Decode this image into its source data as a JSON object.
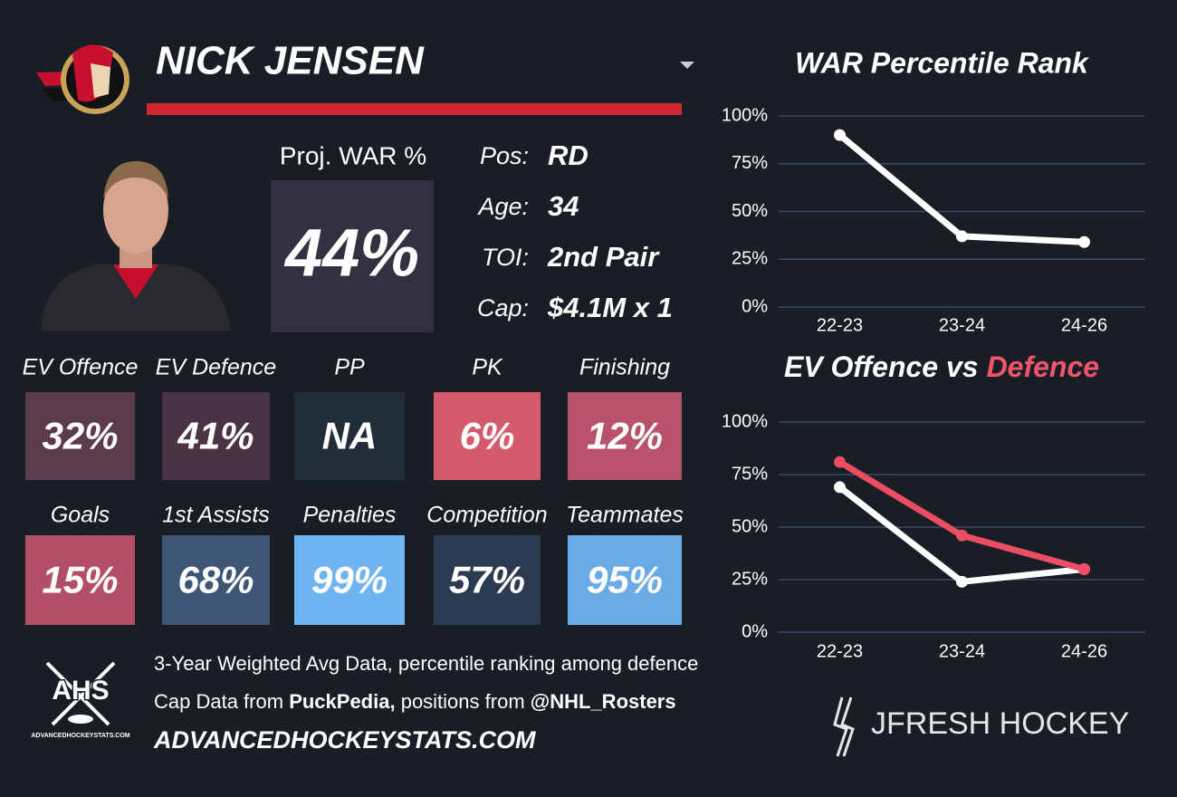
{
  "player": {
    "name": "NICK JENSEN"
  },
  "projected_war": {
    "label": "Proj. WAR %",
    "value": "44%"
  },
  "info": [
    {
      "label": "Pos:",
      "value": "RD"
    },
    {
      "label": "Age:",
      "value": "34"
    },
    {
      "label": "TOI:",
      "value": "2nd Pair"
    },
    {
      "label": "Cap:",
      "value": "$4.1M x 1"
    }
  ],
  "tiles": [
    {
      "label": "EV Offence",
      "value": "32%",
      "color": "#5b3b4c"
    },
    {
      "label": "EV Defence",
      "value": "41%",
      "color": "#4a3343"
    },
    {
      "label": "PP",
      "value": "NA",
      "color": "#222d3a"
    },
    {
      "label": "PK",
      "value": "6%",
      "color": "#d35b6b"
    },
    {
      "label": "Finishing",
      "value": "12%",
      "color": "#b8516a"
    },
    {
      "label": "Goals",
      "value": "15%",
      "color": "#b24f66"
    },
    {
      "label": "1st Assists",
      "value": "68%",
      "color": "#3c5674"
    },
    {
      "label": "Penalties",
      "value": "99%",
      "color": "#6fb3f0"
    },
    {
      "label": "Competition",
      "value": "57%",
      "color": "#2b3a50"
    },
    {
      "label": "Teammates",
      "value": "95%",
      "color": "#6aabe6"
    }
  ],
  "footer": {
    "line1": "3-Year Weighted Avg Data, percentile ranking among defence",
    "line2": [
      "Cap Data from",
      "PuckPedia,",
      "positions from",
      "@NHL_Rosters"
    ],
    "site": "ADVANCEDHOCKEYSTATS.COM",
    "logo_text": "AHS",
    "logo_caption": "ADVANCEDHOCKEYSTATS.COM",
    "brand": "JFRESH HOCKEY"
  },
  "chart_data": [
    {
      "type": "line",
      "title": "WAR Percentile Rank",
      "categories": [
        "22-23",
        "23-24",
        "24-26"
      ],
      "series": [
        {
          "color": "#ffffff",
          "values": [
            90,
            37,
            34
          ]
        }
      ],
      "ylim": [
        0,
        100
      ],
      "yticks": [
        {
          "value": 0,
          "label": "0%"
        },
        {
          "value": 25,
          "label": "25%"
        },
        {
          "value": 50,
          "label": "50%"
        },
        {
          "value": 75,
          "label": "75%"
        },
        {
          "value": 100,
          "label": "100%"
        }
      ],
      "grid": true
    },
    {
      "type": "line",
      "title": [
        "EV Offence vs",
        "Defence"
      ],
      "title_colors": [
        "#ffffff",
        "#f0556b"
      ],
      "categories": [
        "22-23",
        "23-24",
        "24-26"
      ],
      "series": [
        {
          "color": "#ffffff",
          "values": [
            69,
            24,
            30
          ]
        },
        {
          "color": "#ec4d63",
          "values": [
            81,
            46,
            30
          ]
        }
      ],
      "ylim": [
        0,
        100
      ],
      "yticks": [
        {
          "value": 0,
          "label": "0%"
        },
        {
          "value": 25,
          "label": "25%"
        },
        {
          "value": 50,
          "label": "50%"
        },
        {
          "value": 75,
          "label": "75%"
        },
        {
          "value": 100,
          "label": "100%"
        }
      ],
      "grid": true
    }
  ]
}
